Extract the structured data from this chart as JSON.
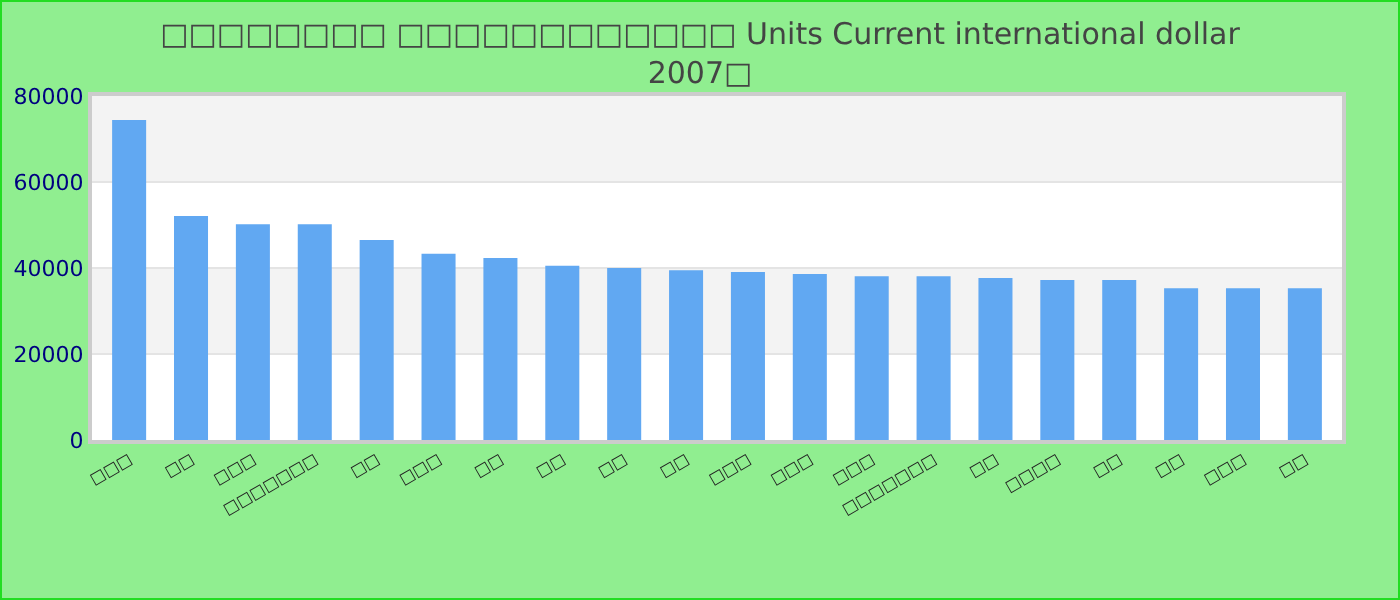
{
  "chart_data": {
    "type": "bar",
    "title": "□□□□□□□□ □□□□□□□□□□□□ Units Current international dollar 2007□",
    "categories": [
      "□□□",
      "□□",
      "□□□",
      "□□□□□□□",
      "□□",
      "□□□",
      "□□",
      "□□",
      "□□",
      "□□",
      "□□□",
      "□□□",
      "□□□",
      "□□□□□□□",
      "□□",
      "□□□□",
      "□□",
      "□□",
      "□□□",
      "□□"
    ],
    "values": [
      74400,
      52100,
      50200,
      50200,
      46500,
      43300,
      42300,
      40500,
      40000,
      39500,
      39100,
      38600,
      38100,
      38100,
      37700,
      37200,
      37200,
      35300,
      35300,
      35300
    ],
    "color": "#61a8f2",
    "ylim": [
      0,
      80000
    ],
    "yticks": [
      0,
      20000,
      40000,
      60000,
      80000
    ],
    "grid": true,
    "legend": false
  }
}
